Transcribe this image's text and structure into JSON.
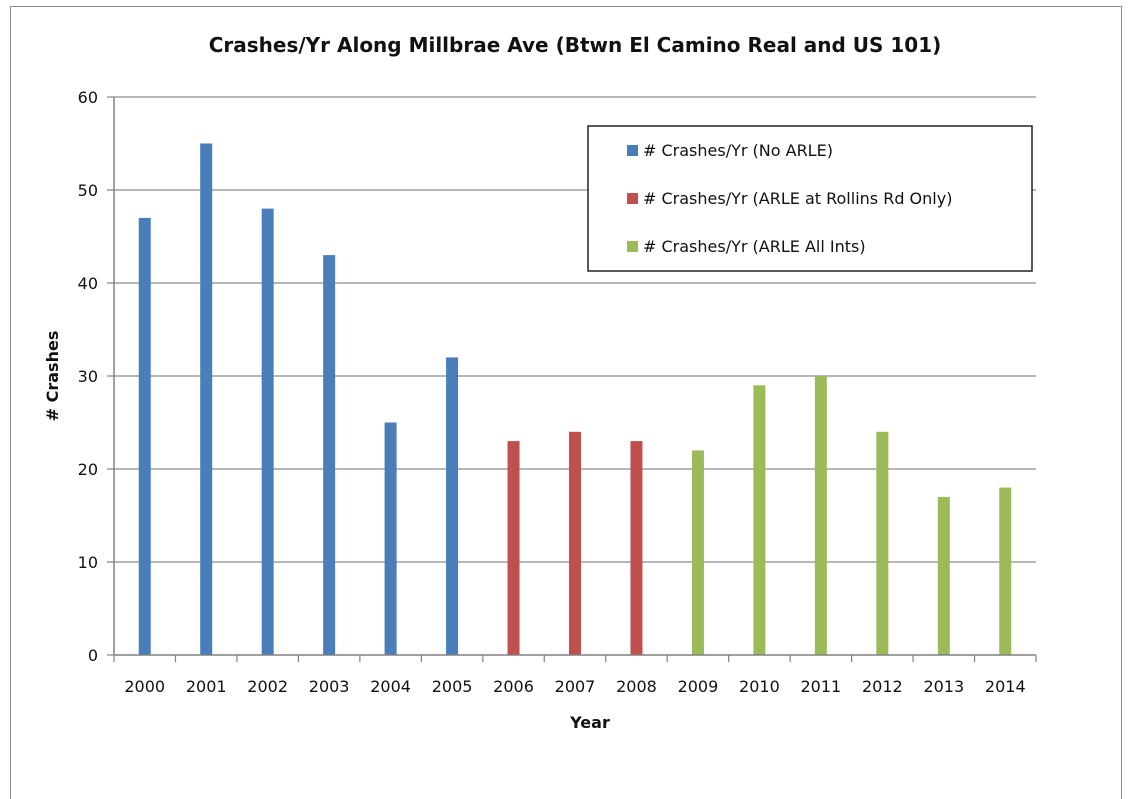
{
  "chart_data": {
    "type": "bar",
    "title": "Crashes/Yr Along Millbrae Ave (Btwn El Camino Real and US 101)",
    "xlabel": "Year",
    "ylabel": "# Crashes",
    "ylim": [
      0,
      60
    ],
    "yticks": [
      0,
      10,
      20,
      30,
      40,
      50,
      60
    ],
    "grid": true,
    "legend_position": "top-right",
    "categories": [
      "2000",
      "2001",
      "2002",
      "2003",
      "2004",
      "2005",
      "2006",
      "2007",
      "2008",
      "2009",
      "2010",
      "2011",
      "2012",
      "2013",
      "2014"
    ],
    "series": [
      {
        "name": "# Crashes/Yr (No ARLE)",
        "color": "#4a7ebb",
        "values": [
          47,
          55,
          48,
          43,
          25,
          32,
          null,
          null,
          null,
          null,
          null,
          null,
          null,
          null,
          null
        ]
      },
      {
        "name": "# Crashes/Yr (ARLE at Rollins Rd Only)",
        "color": "#c0504d",
        "values": [
          null,
          null,
          null,
          null,
          null,
          null,
          23,
          24,
          23,
          null,
          null,
          null,
          null,
          null,
          null
        ]
      },
      {
        "name": "# Crashes/Yr (ARLE All Ints)",
        "color": "#9bbb59",
        "values": [
          null,
          null,
          null,
          null,
          null,
          null,
          null,
          null,
          null,
          22,
          29,
          30,
          24,
          17,
          18
        ]
      }
    ]
  }
}
